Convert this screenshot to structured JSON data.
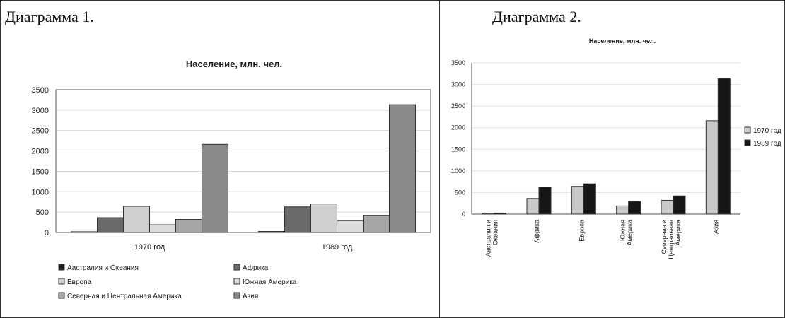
{
  "panel1": {
    "heading": "Диаграмма 1."
  },
  "panel2": {
    "heading": "Диаграмма 2."
  },
  "chart_data": [
    {
      "type": "bar",
      "title": "Население, млн. чел.",
      "xlabel": "",
      "ylabel": "",
      "categories": [
        "1970 год",
        "1989 год"
      ],
      "ylim": [
        0,
        3500
      ],
      "yticks": [
        0,
        500,
        1000,
        1500,
        2000,
        2500,
        3000,
        3500
      ],
      "grid": true,
      "legend_position": "bottom",
      "series": [
        {
          "name": "Австралия и Океания",
          "values": [
            19,
            26
          ],
          "color": "#1e1e1e"
        },
        {
          "name": "Африка",
          "values": [
            363,
            628
          ],
          "color": "#6a6a6a"
        },
        {
          "name": "Европа",
          "values": [
            642,
            701
          ],
          "color": "#cfcfcf"
        },
        {
          "name": "Южная Америка",
          "values": [
            190,
            291
          ],
          "color": "#dcdcdc"
        },
        {
          "name": "Северная и Центральная Америка",
          "values": [
            320,
            422
          ],
          "color": "#a6a6a6"
        },
        {
          "name": "Азия",
          "values": [
            2161,
            3133
          ],
          "color": "#8a8a8a"
        }
      ],
      "legend_labels": [
        "Аастралия и Океания",
        "Африка",
        "Европа",
        "Южная Америка",
        "Северная и Центральная Америка",
        "Азия"
      ]
    },
    {
      "type": "bar",
      "title": "Население, млн. чел.",
      "xlabel": "",
      "ylabel": "",
      "categories": [
        "Австралия и Океания",
        "Африка",
        "Европа",
        "Южная Америка",
        "Северная и Центральная Америка",
        "Азия"
      ],
      "ylim": [
        0,
        3500
      ],
      "yticks": [
        0,
        500,
        1000,
        1500,
        2000,
        2500,
        3000,
        3500
      ],
      "grid": true,
      "legend_position": "right",
      "series": [
        {
          "name": "1970 год",
          "values": [
            19,
            363,
            642,
            190,
            320,
            2161
          ],
          "color": "#c8c8c8"
        },
        {
          "name": "1989 год",
          "values": [
            26,
            628,
            701,
            291,
            422,
            3133
          ],
          "color": "#161616"
        }
      ]
    }
  ]
}
